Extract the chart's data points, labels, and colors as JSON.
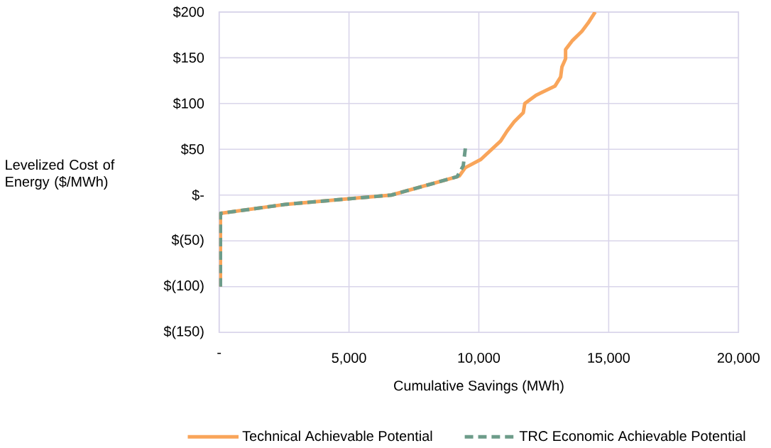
{
  "chart_data": {
    "type": "line",
    "xlabel": "Cumulative Savings (MWh)",
    "ylabel": "Levelized Cost of Energy ($/MWh)",
    "xlim": [
      0,
      20000
    ],
    "xticks": [
      {
        "value": 0,
        "label": "-"
      },
      {
        "value": 5000,
        "label": "5,000"
      },
      {
        "value": 10000,
        "label": "10,000"
      },
      {
        "value": 15000,
        "label": "15,000"
      },
      {
        "value": 20000,
        "label": "20,000"
      }
    ],
    "ylim": [
      -150,
      200
    ],
    "yticks": [
      {
        "value": -150,
        "label": "$(150)"
      },
      {
        "value": -100,
        "label": "$(100)"
      },
      {
        "value": -50,
        "label": "$(50)"
      },
      {
        "value": 0,
        "label": "$-"
      },
      {
        "value": 50,
        "label": "$50"
      },
      {
        "value": 100,
        "label": "$100"
      },
      {
        "value": 150,
        "label": "$150"
      },
      {
        "value": 200,
        "label": "$200"
      }
    ],
    "grid": true,
    "legend": "bottom",
    "series": [
      {
        "name": "Technical Achievable Potential",
        "color": "#f9a55a",
        "line_style": "solid",
        "x": [
          50,
          50,
          2600,
          6630,
          9160,
          9250,
          9480,
          10080,
          10840,
          11090,
          11360,
          11710,
          11770,
          12200,
          12930,
          13150,
          13200,
          13340,
          13340,
          13610,
          13970,
          14210,
          14480
        ],
        "values": [
          -100,
          -20,
          -10,
          0,
          20,
          21,
          30,
          39,
          59,
          70,
          80,
          90,
          100,
          109,
          119,
          129,
          140,
          149,
          159,
          169,
          179,
          188,
          200
        ]
      },
      {
        "name": "TRC Economic Achievable Potential",
        "color": "#6d9c8a",
        "line_style": "dashed",
        "x": [
          50,
          50,
          2600,
          6630,
          9160,
          9400,
          9480
        ],
        "values": [
          -100,
          -20,
          -10,
          0,
          20,
          32,
          51
        ]
      }
    ]
  }
}
